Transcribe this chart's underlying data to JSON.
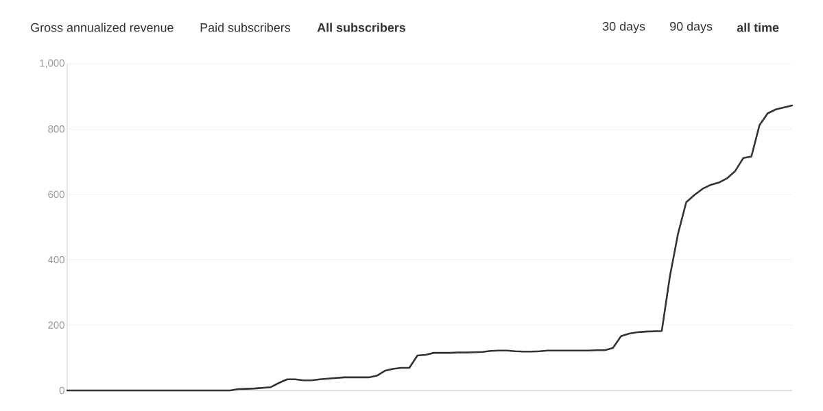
{
  "chart_data": {
    "type": "line",
    "annotations": [
      "Gross annualized revenue",
      "Paid subscribers",
      "All subscribers",
      "30 days",
      "90 days",
      "all time"
    ],
    "categories": [
      null,
      null,
      null,
      null,
      null,
      null,
      null,
      null,
      null,
      null,
      null,
      null,
      null,
      null,
      null,
      null,
      null,
      null,
      null,
      null,
      null,
      null,
      null,
      null,
      null,
      null,
      null,
      null,
      null,
      null,
      null,
      null,
      null,
      null,
      null,
      null,
      null,
      null,
      null,
      null,
      null,
      null,
      null,
      null,
      null,
      null,
      null,
      null,
      null,
      null,
      null,
      null,
      null,
      null,
      null,
      null,
      null,
      null,
      null,
      null,
      null,
      null,
      null,
      null,
      null,
      null,
      null,
      null,
      null,
      null,
      null,
      null,
      null,
      null,
      null,
      null,
      null,
      null,
      null,
      null,
      null,
      null,
      null,
      null,
      null,
      null,
      null,
      null,
      null,
      null
    ],
    "values": [
      0,
      0,
      0,
      0,
      0,
      0,
      0,
      0,
      0,
      0,
      0,
      0,
      0,
      0,
      0,
      0,
      0,
      0,
      0,
      0,
      0,
      4,
      5,
      6,
      8,
      10,
      23,
      34,
      34,
      31,
      31,
      34,
      36,
      38,
      40,
      40,
      40,
      40,
      45,
      60,
      66,
      69,
      69,
      107,
      109,
      115,
      115,
      115,
      116,
      116,
      117,
      118,
      121,
      122,
      122,
      120,
      119,
      119,
      120,
      122,
      122,
      122,
      122,
      122,
      122,
      123,
      123,
      130,
      166,
      174,
      178,
      180,
      181,
      182,
      350,
      480,
      576,
      598,
      617,
      629,
      636,
      649,
      671,
      711,
      716,
      812,
      848,
      860,
      866,
      872
    ],
    "color": "#333333",
    "ylim": [
      0,
      1000
    ],
    "yticks": [
      0,
      200,
      400,
      600,
      800,
      {
        "value": 1000,
        "label": "1,000"
      }
    ],
    "grid": "y",
    "marker": "none",
    "line_style": "solid"
  }
}
